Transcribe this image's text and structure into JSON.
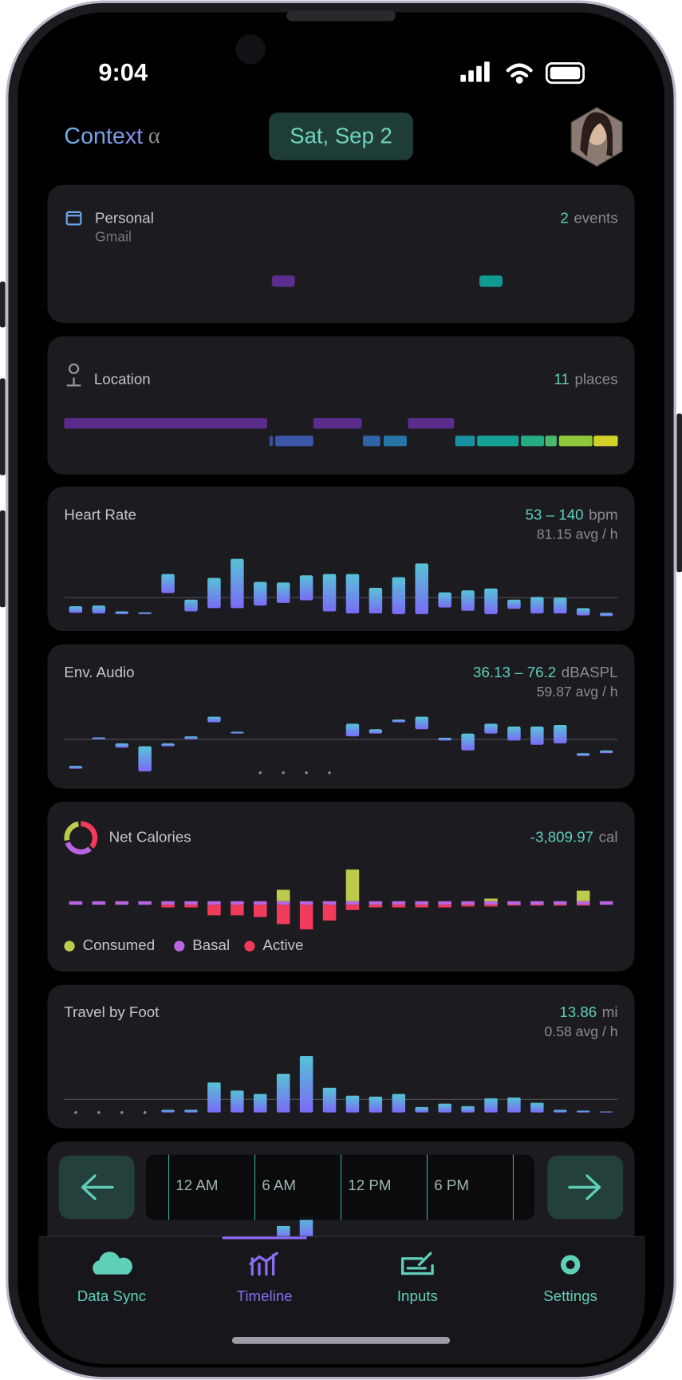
{
  "status_bar": {
    "time": "9:04"
  },
  "header": {
    "title": "Context",
    "title_suffix": "α",
    "date": "Sat, Sep 2"
  },
  "cards": {
    "calendar": {
      "title": "Personal",
      "subtitle": "Gmail",
      "count": "2",
      "count_unit": "events",
      "events": [
        {
          "start": 9,
          "end": 10,
          "color": "#5b2d8e"
        },
        {
          "start": 18,
          "end": 19,
          "color": "#0f9a92"
        }
      ]
    },
    "location": {
      "title": "Location",
      "count": "11",
      "count_unit": "places",
      "segments": [
        {
          "row": 0,
          "start": 0,
          "end": 8.8,
          "color": "#5a2d8c"
        },
        {
          "row": 0,
          "start": 10.8,
          "end": 12.9,
          "color": "#5a2d8c"
        },
        {
          "row": 0,
          "start": 14.9,
          "end": 16.9,
          "color": "#5a2d8c"
        },
        {
          "row": 1,
          "start": 8.9,
          "end": 9.05,
          "color": "#3b4fa0"
        },
        {
          "row": 1,
          "start": 9.15,
          "end": 10.8,
          "color": "#3c56a8"
        },
        {
          "row": 1,
          "start": 12.95,
          "end": 13.7,
          "color": "#2f63a6"
        },
        {
          "row": 1,
          "start": 13.85,
          "end": 14.85,
          "color": "#2675a6"
        },
        {
          "row": 1,
          "start": 16.95,
          "end": 17.8,
          "color": "#19909f"
        },
        {
          "row": 1,
          "start": 17.9,
          "end": 19.7,
          "color": "#16a093"
        },
        {
          "row": 1,
          "start": 19.8,
          "end": 20.8,
          "color": "#24ad85"
        },
        {
          "row": 1,
          "start": 20.85,
          "end": 21.35,
          "color": "#4ab86f"
        },
        {
          "row": 1,
          "start": 21.45,
          "end": 22.9,
          "color": "#8ec93c"
        },
        {
          "row": 1,
          "start": 22.95,
          "end": 24,
          "color": "#d2d12a"
        }
      ]
    },
    "heart_rate": {
      "title": "Heart Rate",
      "range_label": "53 – 140",
      "unit": "bpm",
      "avg": 81.15,
      "avg_label": "81.15 avg / h",
      "ylim": [
        53,
        140
      ],
      "low": [
        58,
        57,
        56,
        56,
        88,
        60,
        65,
        65,
        69,
        73,
        77,
        60,
        57,
        57,
        56,
        56,
        66,
        61,
        56,
        64,
        57,
        57,
        54,
        53
      ],
      "high": [
        68,
        69,
        60,
        58,
        117,
        78,
        111,
        140,
        105,
        104,
        115,
        117,
        117,
        96,
        112,
        133,
        89,
        92,
        95,
        78,
        82,
        81,
        65,
        58
      ]
    },
    "audio": {
      "title": "Env. Audio",
      "range_label": "36.13 – 76.2",
      "unit": "dBASPL",
      "avg": 59.87,
      "avg_label": "59.87 avg / h",
      "ylim": [
        36.13,
        76.2
      ],
      "low": [
        39,
        60,
        54,
        37,
        55,
        60,
        72,
        64,
        null,
        null,
        null,
        null,
        62,
        64,
        72,
        67,
        59,
        52,
        64,
        59,
        56,
        57,
        48,
        50
      ],
      "high": [
        41,
        61,
        57,
        55,
        57,
        62,
        76,
        65,
        null,
        null,
        null,
        null,
        71,
        67,
        74,
        76,
        61,
        64,
        71,
        69,
        69,
        70,
        50,
        52
      ]
    },
    "calories": {
      "title": "Net Calories",
      "total_label": "-3,809.97",
      "unit": "cal",
      "series": [
        {
          "name": "Consumed",
          "color": "#bccb4c",
          "values": [
            0,
            0,
            0,
            0,
            0,
            0,
            0,
            0,
            0,
            260,
            0,
            0,
            720,
            0,
            0,
            0,
            0,
            0,
            60,
            0,
            0,
            0,
            240,
            0
          ]
        },
        {
          "name": "Basal",
          "color": "#b866e0",
          "values": [
            80,
            80,
            80,
            80,
            80,
            80,
            80,
            80,
            80,
            80,
            80,
            80,
            80,
            80,
            80,
            80,
            80,
            80,
            80,
            80,
            80,
            80,
            80,
            80
          ]
        },
        {
          "name": "Active",
          "color": "#f03b5a",
          "values": [
            0,
            0,
            0,
            0,
            60,
            60,
            240,
            240,
            280,
            440,
            560,
            360,
            120,
            60,
            60,
            60,
            60,
            40,
            40,
            20,
            20,
            20,
            20,
            0
          ]
        }
      ]
    },
    "foot": {
      "title": "Travel by Foot",
      "total_label": "13.86",
      "unit": "mi",
      "avg": 0.58,
      "avg_label": "0.58 avg / h",
      "values": [
        null,
        null,
        null,
        null,
        0.12,
        0.12,
        1.34,
        0.98,
        0.83,
        1.73,
        2.52,
        1.1,
        0.75,
        0.71,
        0.83,
        0.24,
        0.39,
        0.28,
        0.63,
        0.67,
        0.43,
        0.12,
        0.08,
        0.04
      ]
    }
  },
  "time_axis": {
    "labels": [
      "12 AM",
      "6 AM",
      "12 PM",
      "6 PM"
    ]
  },
  "tabs": [
    {
      "label": "Data Sync",
      "active": false
    },
    {
      "label": "Timeline",
      "active": true
    },
    {
      "label": "Inputs",
      "active": false
    },
    {
      "label": "Settings",
      "active": false
    }
  ]
}
